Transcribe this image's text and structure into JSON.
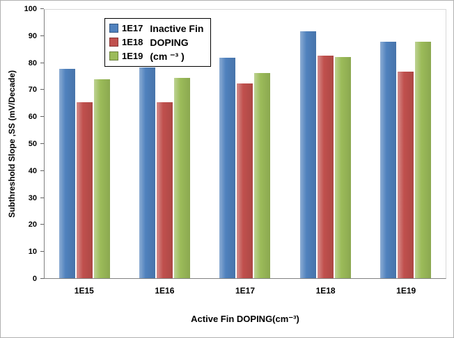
{
  "chart_data": {
    "type": "bar",
    "title": "",
    "categories": [
      "1E15",
      "1E16",
      "1E17",
      "1E18",
      "1E19"
    ],
    "series": [
      {
        "name": "1E17",
        "color": "#4f81bd",
        "values": [
          78,
          78.5,
          82,
          92,
          88
        ]
      },
      {
        "name": "1E18",
        "color": "#c0504d",
        "values": [
          65.5,
          65.5,
          72.5,
          83,
          77
        ]
      },
      {
        "name": "1E19",
        "color": "#9bbb59",
        "values": [
          74,
          74.5,
          76.5,
          82.5,
          88
        ]
      }
    ],
    "xlabel": "Active  Fin DOPING(cm⁻³)",
    "ylabel": "Subthreshold Slope ,SS (mV/Decade)",
    "ylim": [
      0,
      100
    ],
    "ytick_step": 10,
    "grid": false,
    "legend": {
      "position": "top-left",
      "title_lines": [
        "Inactive Fin",
        "DOPING",
        "(cm ⁻³ )"
      ]
    }
  }
}
